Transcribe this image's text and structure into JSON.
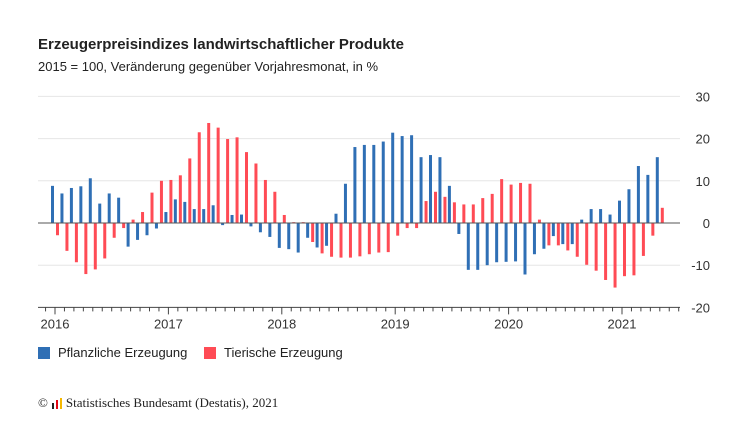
{
  "chart_data": {
    "type": "bar",
    "title": "Erzeugerpreisindizes landwirtschaftlicher Produkte",
    "subtitle": "2015 = 100, Veränderung gegenüber Vorjahresmonat, in %",
    "x_start": "2016-01",
    "x_tick_labels": [
      "2016",
      "2017",
      "2018",
      "2019",
      "2020",
      "2021"
    ],
    "y_tick_labels": [
      "30",
      "20",
      "10",
      "0",
      "-10",
      "-20"
    ],
    "ylim": [
      -20,
      30
    ],
    "grid": true,
    "legend_position": "bottom-left",
    "series": [
      {
        "name": "Pflanzliche Erzeugung",
        "color": "#2f6fb5",
        "values": [
          8.8,
          7.0,
          8.3,
          8.7,
          10.6,
          4.6,
          7.0,
          6.0,
          -5.6,
          -4.0,
          -2.9,
          -1.3,
          2.6,
          5.6,
          5.0,
          3.3,
          3.3,
          4.2,
          -0.5,
          1.9,
          2.0,
          -0.8,
          -2.2,
          -3.3,
          -5.9,
          -6.2,
          -7.0,
          -3.5,
          -5.8,
          -5.4,
          2.2,
          9.3,
          18.0,
          18.5,
          18.5,
          19.3,
          21.4,
          20.6,
          20.8,
          15.6,
          16.1,
          15.6,
          8.8,
          -2.6,
          -11.1,
          -11.1,
          -10.0,
          -9.3,
          -9.2,
          -9.1,
          -12.2,
          -7.4,
          -6.1,
          -3.1,
          -5.0,
          -5.0,
          0.8,
          3.3,
          3.3,
          2.0,
          5.3,
          8.0,
          13.5,
          11.4,
          15.6
        ]
      },
      {
        "name": "Tierische Erzeugung",
        "color": "#ff4b55",
        "values": [
          -2.9,
          -6.6,
          -9.3,
          -12.1,
          -11.0,
          -8.4,
          -3.5,
          -1.2,
          0.8,
          2.6,
          7.2,
          10.0,
          10.2,
          11.3,
          15.3,
          21.5,
          23.7,
          22.6,
          19.9,
          20.3,
          16.8,
          14.1,
          10.2,
          7.4,
          1.9,
          0.2,
          0.2,
          -4.5,
          -7.2,
          -8.0,
          -8.2,
          -8.2,
          -7.9,
          -7.4,
          -7.0,
          -6.9,
          -3.0,
          -1.2,
          -1.2,
          5.2,
          7.4,
          6.2,
          4.9,
          4.4,
          4.4,
          5.9,
          6.9,
          10.4,
          9.1,
          9.5,
          9.3,
          0.8,
          -5.3,
          -5.3,
          -6.5,
          -8.0,
          -9.9,
          -11.3,
          -13.5,
          -15.3,
          -12.6,
          -12.4,
          -7.8,
          -3.0,
          3.6
        ]
      }
    ]
  },
  "source": "Statistisches Bundesamt (Destatis), 2021",
  "copyright": "©"
}
